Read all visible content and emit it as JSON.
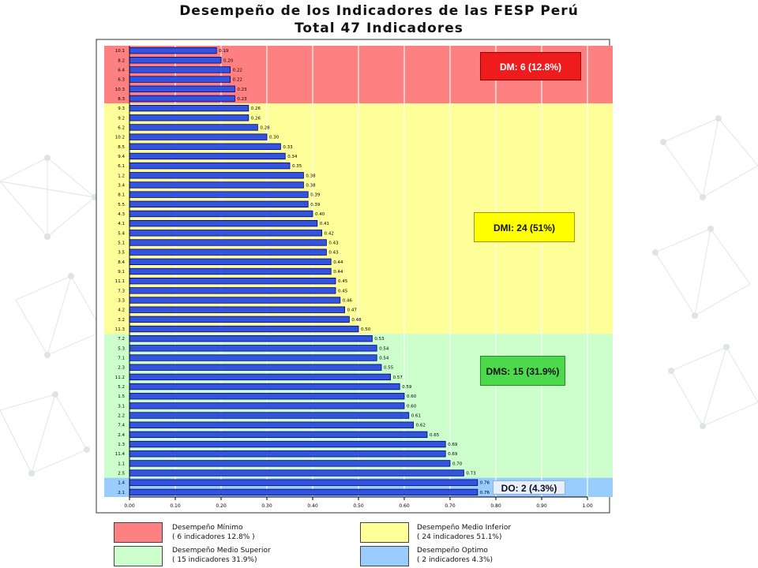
{
  "title_line1": "Desempeño de los Indicadores de las FESP Perú",
  "title_line2": "Total  47  Indicadores",
  "tags": {
    "dm": "DM:  6 (12.8%)",
    "dmi": "DMI:  24 (51%)",
    "dms": "DMS:  15 (31.9%)",
    "do": "DO:  2 (4.3%)"
  },
  "legend": [
    {
      "name": "Desempeño Mínimo",
      "detail": "( 6  indicadores 12.8% )",
      "color": "#ff8080"
    },
    {
      "name": "Desempeño Medio Inferior",
      "detail": "( 24 indicadores 51.1%)",
      "color": "#ffff99"
    },
    {
      "name": "Desempeño Medio Superior",
      "detail": "( 15 indicadores 31.9%)",
      "color": "#ccffcc"
    },
    {
      "name": "Desempeño Optimo",
      "detail": "( 2 indicadores 4.3%)",
      "color": "#99ccff"
    }
  ],
  "colors": {
    "bar_fill": "#3355dd",
    "bar_stroke": "#000080",
    "zone_dm": "#ff8080",
    "zone_dmi": "#ffff99",
    "zone_dms": "#ccffcc",
    "zone_do": "#99ccff"
  },
  "chart_data": {
    "type": "bar",
    "orientation": "horizontal",
    "categories": [
      "10.1",
      "8.2",
      "6.4",
      "6.3",
      "10.3",
      "8.3",
      "9.3",
      "9.2",
      "6.2",
      "10.2",
      "8.5",
      "9.4",
      "6.1",
      "1.2",
      "3.4",
      "8.1",
      "5.5",
      "4.3",
      "4.1",
      "5.4",
      "5.1",
      "3.5",
      "8.4",
      "9.1",
      "11.1",
      "7.3",
      "3.3",
      "4.2",
      "3.2",
      "11.3",
      "7.2",
      "5.3",
      "7.1",
      "2.3",
      "11.2",
      "5.2",
      "1.5",
      "3.1",
      "2.2",
      "7.4",
      "2.4",
      "1.3",
      "11.4",
      "1.1",
      "2.5",
      "1.4",
      "2.1"
    ],
    "values": [
      0.19,
      0.2,
      0.22,
      0.22,
      0.23,
      0.23,
      0.26,
      0.26,
      0.28,
      0.3,
      0.33,
      0.34,
      0.35,
      0.38,
      0.38,
      0.39,
      0.39,
      0.4,
      0.41,
      0.42,
      0.43,
      0.43,
      0.44,
      0.44,
      0.45,
      0.45,
      0.46,
      0.47,
      0.48,
      0.5,
      0.53,
      0.54,
      0.54,
      0.55,
      0.57,
      0.59,
      0.6,
      0.6,
      0.61,
      0.62,
      0.65,
      0.69,
      0.69,
      0.7,
      0.73,
      0.76,
      0.76
    ],
    "value_labels": [
      "0.19",
      "0.20",
      "0.22",
      "0.22",
      "0.23",
      "0.23",
      "0.26",
      "0.26",
      "0.28",
      "0.30",
      "0.33",
      "0.34",
      "0.35",
      "0.38",
      "0.38",
      "0.39",
      "0.39",
      "0.40",
      "0.41",
      "0.42",
      "0.43",
      "0.43",
      "0.44",
      "0.44",
      "0.45",
      "0.45",
      "0.46",
      "0.47",
      "0.48",
      "0.50",
      "0.53",
      "0.54",
      "0.54",
      "0.55",
      "0.57",
      "0.59",
      "0.60",
      "0.60",
      "0.61",
      "0.62",
      "0.65",
      "0.69",
      "0.69",
      "0.70",
      "0.73",
      "0.76",
      "0.76"
    ],
    "xlim": [
      0,
      1.0
    ],
    "x_ticks": [
      "0.00",
      "0.10",
      "0.20",
      "0.30",
      "0.40",
      "0.50",
      "0.60",
      "0.70",
      "0.80",
      "0.90",
      "1.00"
    ],
    "grid": true,
    "zones": [
      {
        "name": "DM",
        "from_index": 0,
        "to_index": 5
      },
      {
        "name": "DMI",
        "from_index": 6,
        "to_index": 29
      },
      {
        "name": "DMS",
        "from_index": 30,
        "to_index": 44
      },
      {
        "name": "DO",
        "from_index": 45,
        "to_index": 46
      }
    ]
  }
}
